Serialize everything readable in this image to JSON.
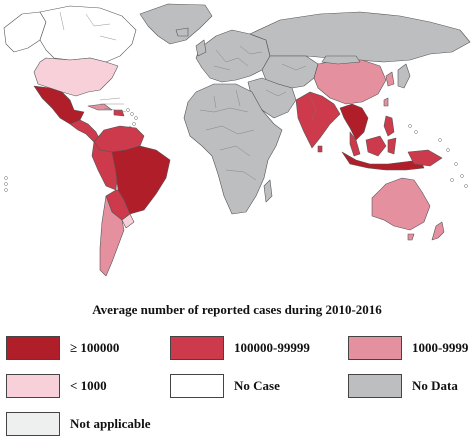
{
  "legend": {
    "title": "Average number of reported cases during 2010-2016",
    "items": [
      {
        "label": "≥ 100000",
        "color": "#b01e2a"
      },
      {
        "label": "100000-99999",
        "color": "#cd3a4b"
      },
      {
        "label": "1000-9999",
        "color": "#e4909f"
      },
      {
        "label": "< 1000",
        "color": "#f7d0da"
      },
      {
        "label": "No Case",
        "color": "#ffffff"
      },
      {
        "label": "No Data",
        "color": "#bcbec0"
      },
      {
        "label": "Not applicable",
        "color": "#eef0f0"
      }
    ]
  },
  "map_colors": {
    "land_nodata": "#bcbec0",
    "outline": "#555555"
  }
}
